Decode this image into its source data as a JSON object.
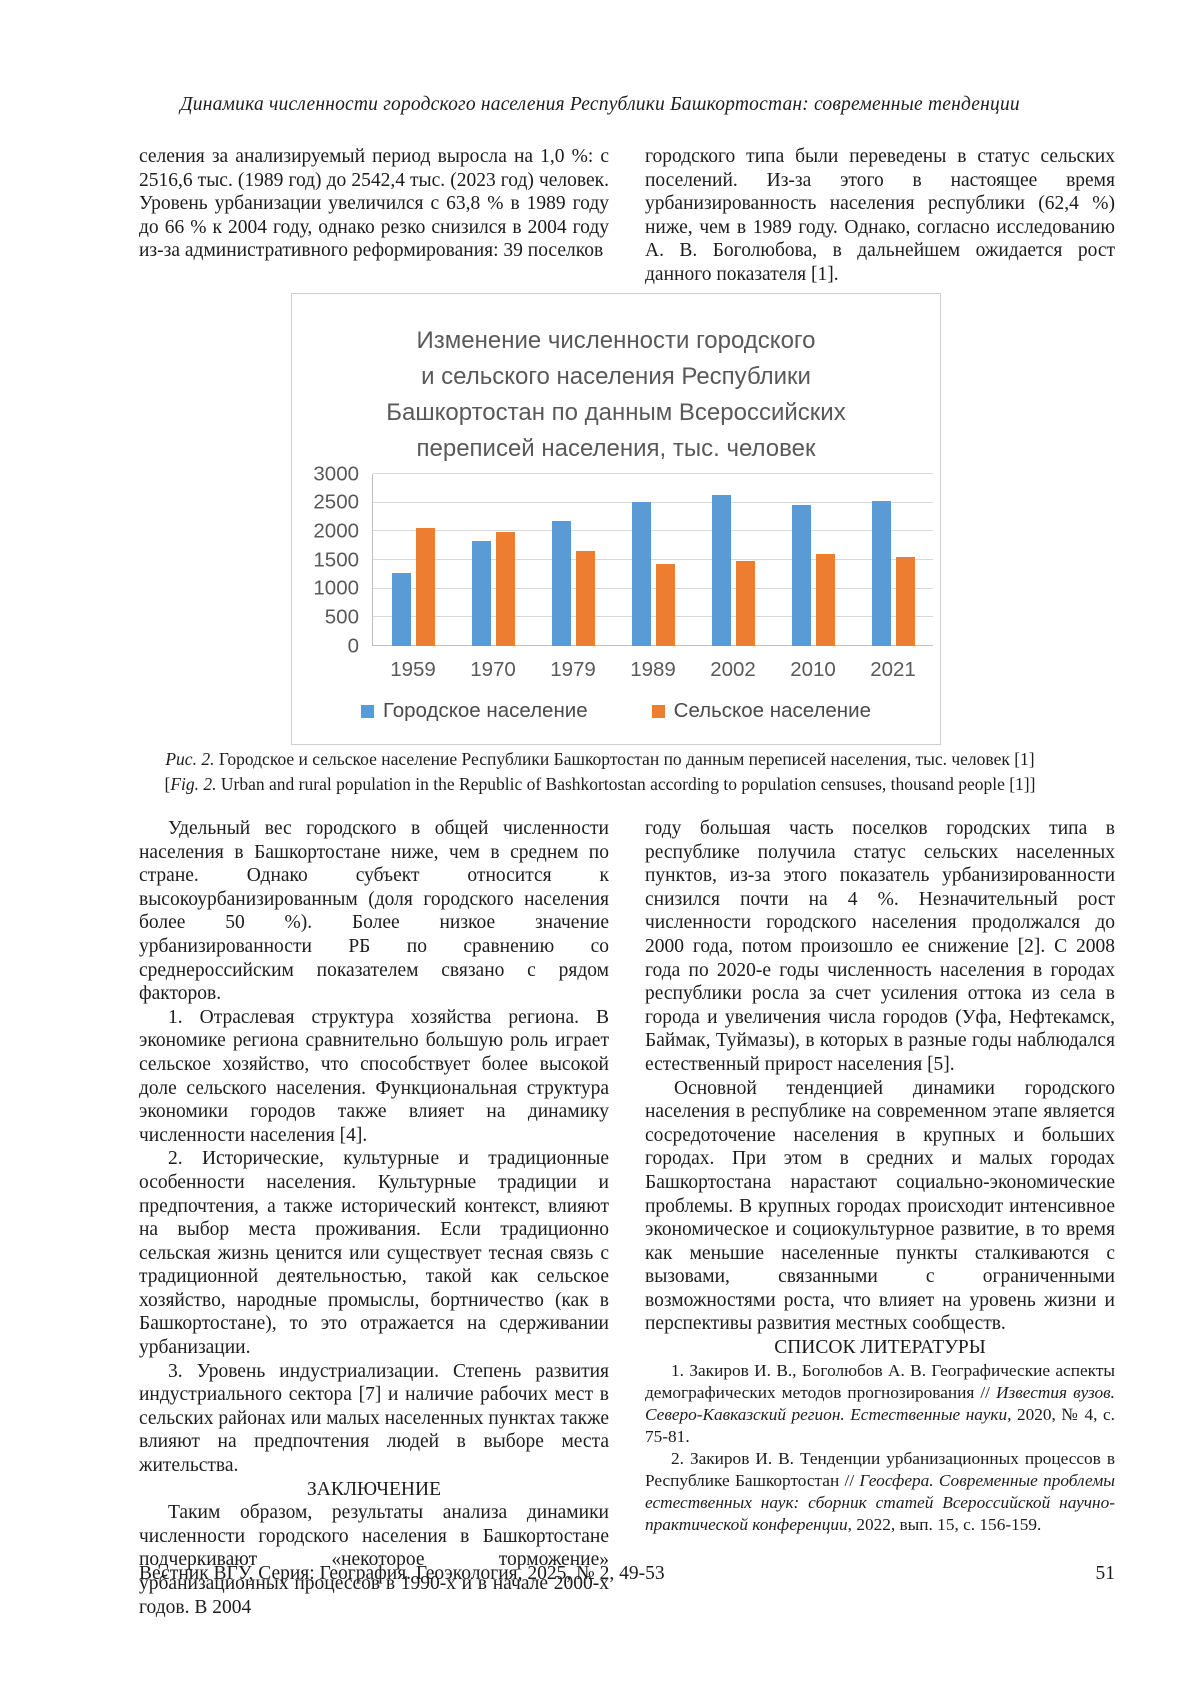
{
  "page": {
    "running_head": "Динамика численности городского населения Республики Башкортостан: современные тенденции",
    "footer": {
      "journal_line": "Вестник ВГУ, Серия: География. Геоэкология, 2025, № 2, 49-53",
      "page_number": "51"
    }
  },
  "intro": {
    "left": "селения за анализируемый период выросла на 1,0 %: с 2516,6 тыс. (1989 год) до 2542,4 тыс. (2023 год) человек. Уровень урбанизации увеличился с 63,8 % в 1989 году до 66 % к 2004 году, однако резко снизился в 2004 году из-за административного реформирования: 39 поселков",
    "right": "городского типа были переведены в статус сельских поселений. Из-за этого в настоящее время урбанизированность населения республики (62,4 %) ниже, чем в 1989 году. Однако, согласно исследованию А. В. Боголюбова, в дальнейшем ожидается рост данного показателя [1]."
  },
  "chart_data": {
    "type": "bar",
    "title": "Изменение численности городского\nи сельского населения Республики\nБашкортостан по данным Всероссийских\nпереписей населения, тыс. человек",
    "categories": [
      "1959",
      "1970",
      "1979",
      "1989",
      "2002",
      "2010",
      "2021"
    ],
    "series": [
      {
        "name": "Городское население",
        "color": "#5B9BD5",
        "values": [
          1281,
          1838,
          2182,
          2517,
          2626,
          2461,
          2532
        ]
      },
      {
        "name": "Сельское население",
        "color": "#ED7D31",
        "values": [
          2056,
          1980,
          1662,
          1426,
          1478,
          1611,
          1559
        ]
      }
    ],
    "xlabel": "",
    "ylabel": "",
    "ylim": [
      0,
      3000
    ],
    "yticks": [
      0,
      500,
      1000,
      1500,
      2000,
      2500,
      3000
    ],
    "grid": true,
    "legend_position": "bottom"
  },
  "figure": {
    "caption_ru": [
      {
        "text": "Рис. 2.",
        "italic": true
      },
      {
        "text": " Городское и сельское население Республики Башкортостан по данным переписей населения, тыс. человек [1]",
        "italic": false
      }
    ],
    "caption_en": [
      {
        "text": "[",
        "italic": false
      },
      {
        "text": "Fig. 2.",
        "italic": true
      },
      {
        "text": " Urban and rural population in the Republic of Bashkortostan according to population censuses, thousand people [1]]",
        "italic": false
      }
    ]
  },
  "body": {
    "left_p1": "Удельный вес городского в общей численности населения в Башкортостане ниже, чем в среднем по стране. Однако субъект относится к высокоурбанизированным (доля городского населения более 50 %). Более низкое значение урбанизированности РБ по сравнению со среднероссийским показателем связано с рядом факторов.",
    "left_p2": "1. Отраслевая структура хозяйства региона. В экономике региона сравнительно большую роль играет сельское хозяйство, что способствует более высокой доле сельского населения. Функциональная структура экономики городов также влияет на динамику численности населения [4].",
    "left_p3": "2. Исторические, культурные и традиционные особенности населения. Культурные традиции и предпочтения, а также исторический контекст, влияют на выбор места проживания. Если традиционно сельская жизнь ценится или существует тесная связь с традиционной деятельностью, такой как сельское хозяйство, народные промыслы, бортничество (как в Башкортостане), то это отражается на сдерживании урбанизации.",
    "left_p4": "3. Уровень индустриализации. Степень развития индустриального сектора [7] и наличие рабочих мест в сельских районах или малых населенных пунктах также влияют на предпочтения людей в выборе места жительства.",
    "conclusion_heading": "ЗАКЛЮЧЕНИЕ",
    "conclusion_p": "Таким образом, результаты анализа динамики численности городского населения в Башкортостане подчеркивают «некоторое торможение» урбанизационных процессов в 1990-х и в начале 2000-х годов. В 2004",
    "right_p1": "году большая часть поселков городских типа в республике получила статус сельских населенных пунктов, из-за этого показатель урбанизированности снизился почти на 4 %. Незначительный рост численности городского населения продолжался до 2000 года, потом произошло ее снижение [2]. С 2008 года по 2020-е годы численность населения в городах республики росла за счет усиления оттока из села в города и увеличения числа городов (Уфа, Нефтекамск, Баймак, Туймазы), в которых в разные годы наблюдался естественный прирост населения [5].",
    "right_p2": "Основной тенденцией динамики городского населения в республике на современном этапе является сосредоточение населения в крупных и больших городах. При этом в средних и малых городах Башкортостана нарастают социально-экономические проблемы. В крупных городах происходит интенсивное экономическое и социокультурное развитие, в то время как меньшие населенные пункты сталкиваются с вызовами, связанными с ограниченными возможностями роста, что влияет на уровень жизни и перспективы развития местных сообществ.",
    "references_heading": "СПИСОК ЛИТЕРАТУРЫ",
    "ref1": [
      {
        "text": "1. Закиров И. В., Боголюбов А. В. Географические аспекты демографических методов прогнозирования // ",
        "italic": false
      },
      {
        "text": "Известия вузов. Северо-Кавказский регион. Естественные науки,",
        "italic": true
      },
      {
        "text": " 2020, № 4, с. 75-81.",
        "italic": false
      }
    ],
    "ref2": [
      {
        "text": "2. Закиров И. В. Тенденции урбанизационных процессов в Республике Башкортостан // ",
        "italic": false
      },
      {
        "text": "Геосфера. Современные проблемы естественных наук: сборник статей Всероссийской научно-практической конференции",
        "italic": true
      },
      {
        "text": ", 2022, вып. 15, с. 156-159.",
        "italic": false
      }
    ]
  }
}
